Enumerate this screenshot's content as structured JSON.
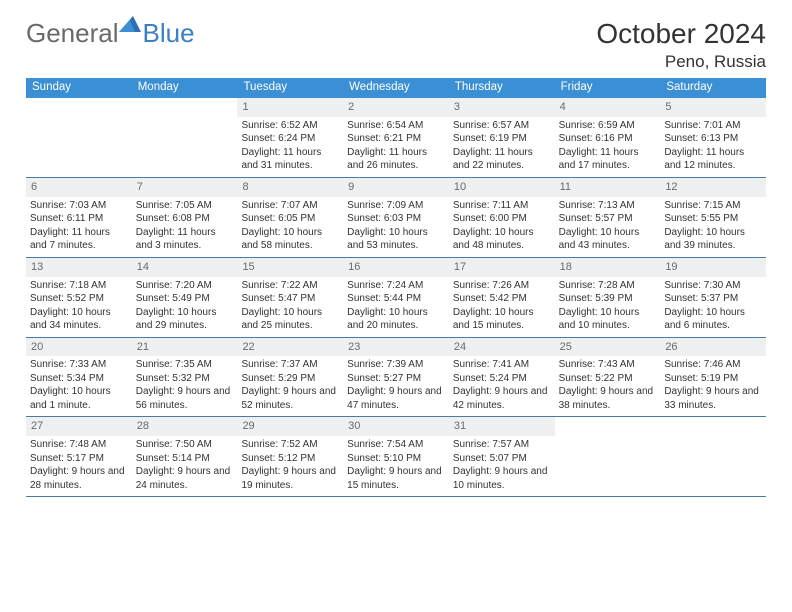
{
  "brand": {
    "part1": "General",
    "part2": "Blue"
  },
  "header": {
    "month": "October 2024",
    "location": "Peno, Russia"
  },
  "colors": {
    "header_bar": "#3b8fd4",
    "row_border": "#4a7ba8",
    "daynum_bg": "#eef0f2",
    "logo_gray": "#6a6a6a",
    "logo_blue": "#3b7fc4"
  },
  "day_names": [
    "Sunday",
    "Monday",
    "Tuesday",
    "Wednesday",
    "Thursday",
    "Friday",
    "Saturday"
  ],
  "weeks": [
    [
      {
        "n": "",
        "sr": "",
        "ss": "",
        "dl": ""
      },
      {
        "n": "",
        "sr": "",
        "ss": "",
        "dl": ""
      },
      {
        "n": "1",
        "sr": "6:52 AM",
        "ss": "6:24 PM",
        "dl": "11 hours and 31 minutes."
      },
      {
        "n": "2",
        "sr": "6:54 AM",
        "ss": "6:21 PM",
        "dl": "11 hours and 26 minutes."
      },
      {
        "n": "3",
        "sr": "6:57 AM",
        "ss": "6:19 PM",
        "dl": "11 hours and 22 minutes."
      },
      {
        "n": "4",
        "sr": "6:59 AM",
        "ss": "6:16 PM",
        "dl": "11 hours and 17 minutes."
      },
      {
        "n": "5",
        "sr": "7:01 AM",
        "ss": "6:13 PM",
        "dl": "11 hours and 12 minutes."
      }
    ],
    [
      {
        "n": "6",
        "sr": "7:03 AM",
        "ss": "6:11 PM",
        "dl": "11 hours and 7 minutes."
      },
      {
        "n": "7",
        "sr": "7:05 AM",
        "ss": "6:08 PM",
        "dl": "11 hours and 3 minutes."
      },
      {
        "n": "8",
        "sr": "7:07 AM",
        "ss": "6:05 PM",
        "dl": "10 hours and 58 minutes."
      },
      {
        "n": "9",
        "sr": "7:09 AM",
        "ss": "6:03 PM",
        "dl": "10 hours and 53 minutes."
      },
      {
        "n": "10",
        "sr": "7:11 AM",
        "ss": "6:00 PM",
        "dl": "10 hours and 48 minutes."
      },
      {
        "n": "11",
        "sr": "7:13 AM",
        "ss": "5:57 PM",
        "dl": "10 hours and 43 minutes."
      },
      {
        "n": "12",
        "sr": "7:15 AM",
        "ss": "5:55 PM",
        "dl": "10 hours and 39 minutes."
      }
    ],
    [
      {
        "n": "13",
        "sr": "7:18 AM",
        "ss": "5:52 PM",
        "dl": "10 hours and 34 minutes."
      },
      {
        "n": "14",
        "sr": "7:20 AM",
        "ss": "5:49 PM",
        "dl": "10 hours and 29 minutes."
      },
      {
        "n": "15",
        "sr": "7:22 AM",
        "ss": "5:47 PM",
        "dl": "10 hours and 25 minutes."
      },
      {
        "n": "16",
        "sr": "7:24 AM",
        "ss": "5:44 PM",
        "dl": "10 hours and 20 minutes."
      },
      {
        "n": "17",
        "sr": "7:26 AM",
        "ss": "5:42 PM",
        "dl": "10 hours and 15 minutes."
      },
      {
        "n": "18",
        "sr": "7:28 AM",
        "ss": "5:39 PM",
        "dl": "10 hours and 10 minutes."
      },
      {
        "n": "19",
        "sr": "7:30 AM",
        "ss": "5:37 PM",
        "dl": "10 hours and 6 minutes."
      }
    ],
    [
      {
        "n": "20",
        "sr": "7:33 AM",
        "ss": "5:34 PM",
        "dl": "10 hours and 1 minute."
      },
      {
        "n": "21",
        "sr": "7:35 AM",
        "ss": "5:32 PM",
        "dl": "9 hours and 56 minutes."
      },
      {
        "n": "22",
        "sr": "7:37 AM",
        "ss": "5:29 PM",
        "dl": "9 hours and 52 minutes."
      },
      {
        "n": "23",
        "sr": "7:39 AM",
        "ss": "5:27 PM",
        "dl": "9 hours and 47 minutes."
      },
      {
        "n": "24",
        "sr": "7:41 AM",
        "ss": "5:24 PM",
        "dl": "9 hours and 42 minutes."
      },
      {
        "n": "25",
        "sr": "7:43 AM",
        "ss": "5:22 PM",
        "dl": "9 hours and 38 minutes."
      },
      {
        "n": "26",
        "sr": "7:46 AM",
        "ss": "5:19 PM",
        "dl": "9 hours and 33 minutes."
      }
    ],
    [
      {
        "n": "27",
        "sr": "7:48 AM",
        "ss": "5:17 PM",
        "dl": "9 hours and 28 minutes."
      },
      {
        "n": "28",
        "sr": "7:50 AM",
        "ss": "5:14 PM",
        "dl": "9 hours and 24 minutes."
      },
      {
        "n": "29",
        "sr": "7:52 AM",
        "ss": "5:12 PM",
        "dl": "9 hours and 19 minutes."
      },
      {
        "n": "30",
        "sr": "7:54 AM",
        "ss": "5:10 PM",
        "dl": "9 hours and 15 minutes."
      },
      {
        "n": "31",
        "sr": "7:57 AM",
        "ss": "5:07 PM",
        "dl": "9 hours and 10 minutes."
      },
      {
        "n": "",
        "sr": "",
        "ss": "",
        "dl": ""
      },
      {
        "n": "",
        "sr": "",
        "ss": "",
        "dl": ""
      }
    ]
  ],
  "labels": {
    "sunrise": "Sunrise:",
    "sunset": "Sunset:",
    "daylight": "Daylight:"
  }
}
